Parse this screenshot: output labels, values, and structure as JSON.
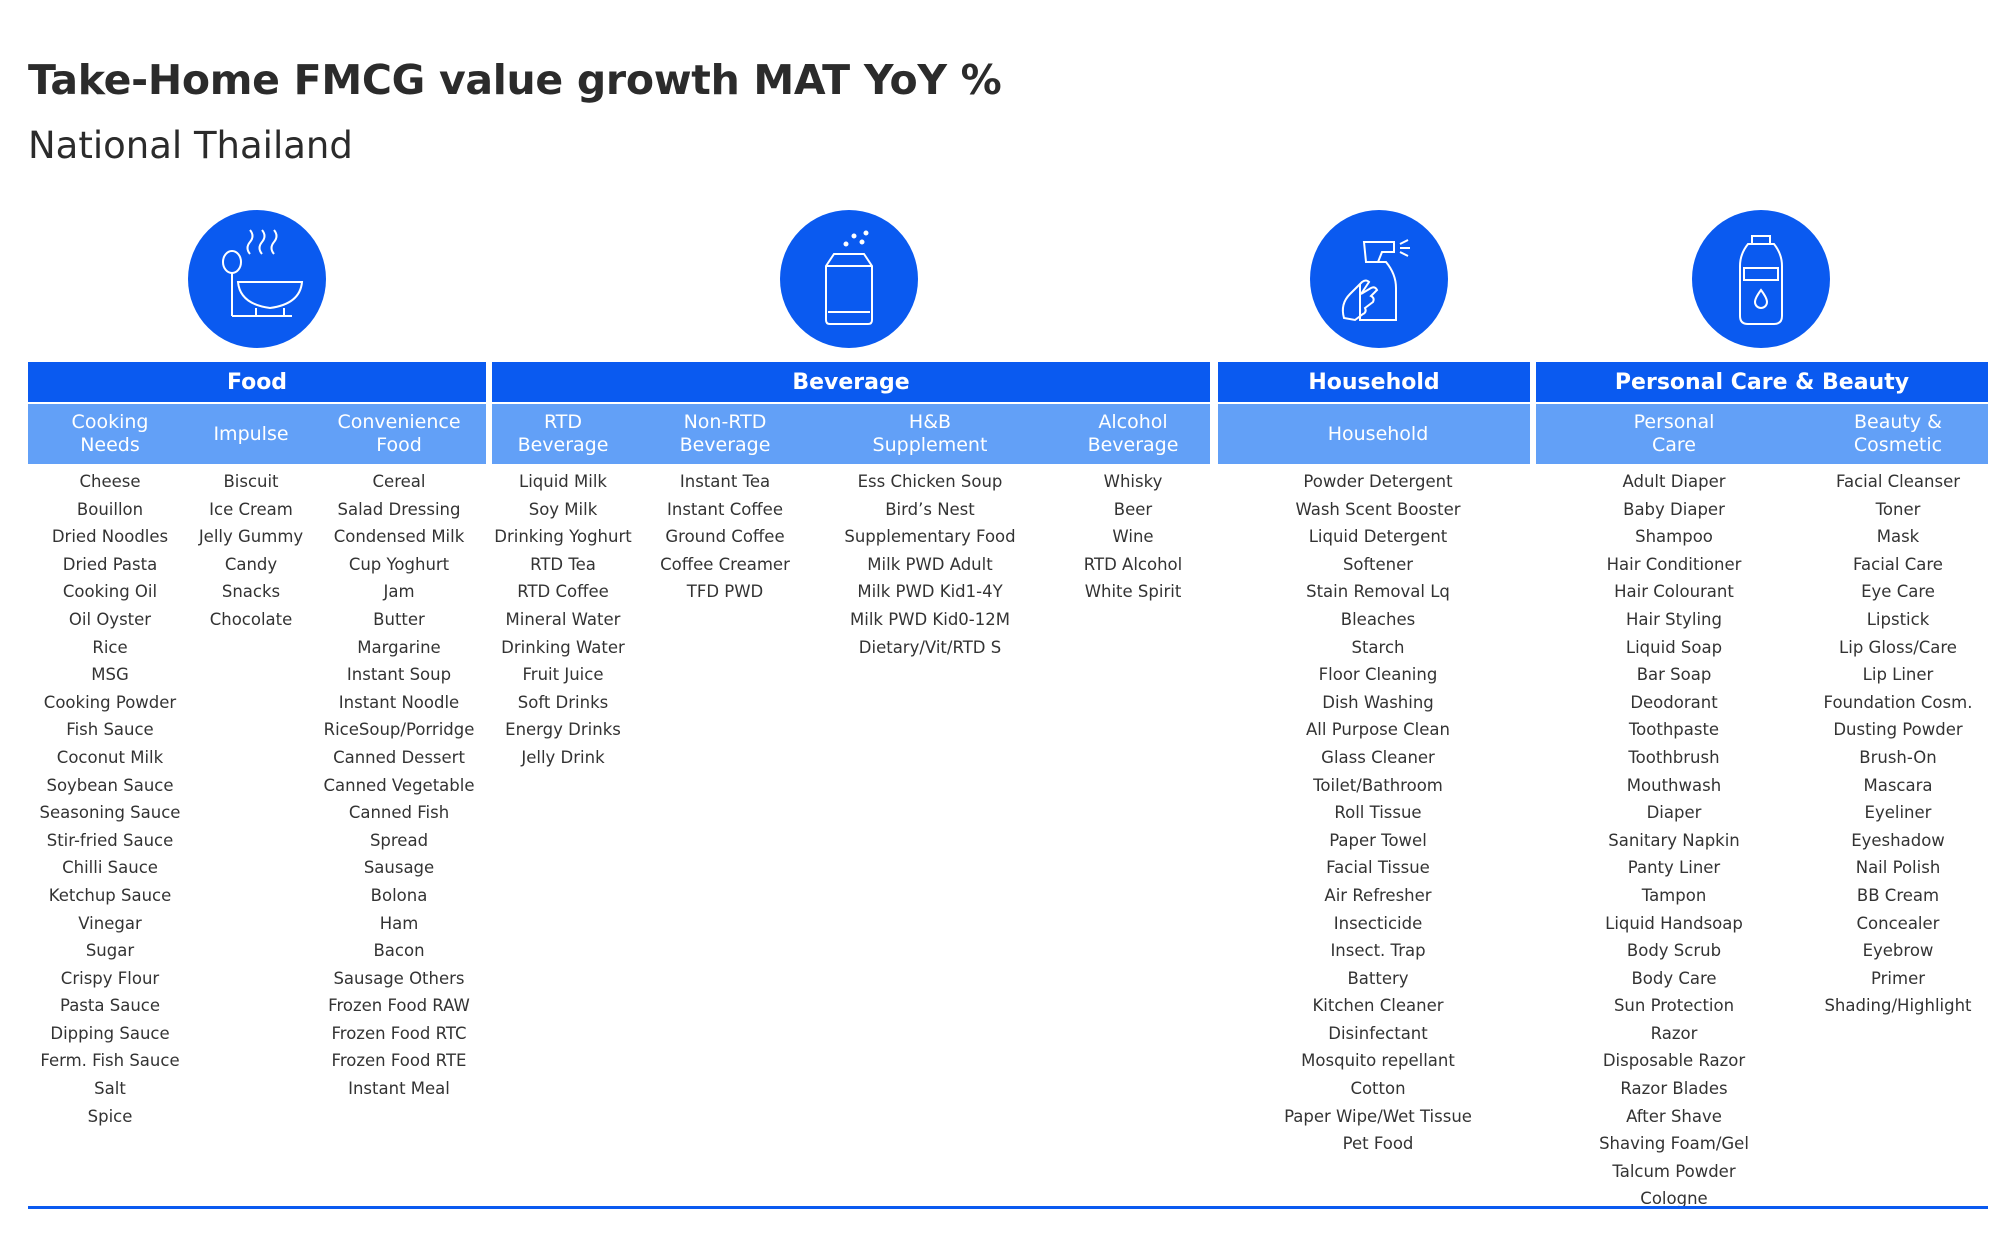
{
  "title": "Take-Home FMCG value growth MAT YoY %",
  "subtitle": "National Thailand",
  "groups": {
    "food": {
      "icon": "food-bowl-icon",
      "label": "Food",
      "subs": [
        {
          "label": "Cooking\nNeeds",
          "items": [
            "Cheese",
            "Bouillon",
            "Dried Noodles",
            "Dried Pasta",
            "Cooking Oil",
            "Oil Oyster",
            "Rice",
            "MSG",
            "Cooking Powder",
            "Fish Sauce",
            "Coconut Milk",
            "Soybean Sauce",
            "Seasoning Sauce",
            "Stir-fried Sauce",
            "Chilli Sauce",
            "Ketchup Sauce",
            "Vinegar",
            "Sugar",
            "Crispy Flour",
            "Pasta Sauce",
            "Dipping Sauce",
            "Ferm. Fish Sauce",
            "Salt",
            "Spice"
          ]
        },
        {
          "label": "Impulse",
          "items": [
            "Biscuit",
            "Ice Cream",
            "Jelly Gummy",
            "Candy",
            "Snacks",
            "Chocolate"
          ]
        },
        {
          "label": "Convenience\nFood",
          "items": [
            "Cereal",
            "Salad Dressing",
            "Condensed Milk",
            "Cup Yoghurt",
            "Jam",
            "Butter",
            "Margarine",
            "Instant Soup",
            "Instant Noodle",
            "RiceSoup/Porridge",
            "Canned Dessert",
            "Canned Vegetable",
            "Canned Fish",
            "Spread",
            "Sausage",
            "Bolona",
            "Ham",
            "Bacon",
            "Sausage Others",
            "Frozen Food RAW",
            "Frozen Food RTC",
            "Frozen Food RTE",
            "Instant Meal"
          ]
        }
      ]
    },
    "beverage": {
      "icon": "beverage-can-icon",
      "label": "Beverage",
      "subs": [
        {
          "label": "RTD\nBeverage",
          "items": [
            "Liquid Milk",
            "Soy Milk",
            "Drinking Yoghurt",
            "RTD Tea",
            "RTD Coffee",
            "Mineral Water",
            "Drinking Water",
            "Fruit Juice",
            "Soft Drinks",
            "Energy Drinks",
            "Jelly Drink"
          ]
        },
        {
          "label": "Non-RTD\nBeverage",
          "items": [
            "Instant Tea",
            "Instant Coffee",
            "Ground Coffee",
            "Coffee Creamer",
            "TFD PWD"
          ]
        },
        {
          "label": "H&B\nSupplement",
          "items": [
            "Ess Chicken Soup",
            "Bird’s Nest",
            "Supplementary Food",
            "Milk PWD Adult",
            "Milk PWD Kid1-4Y",
            "Milk PWD Kid0-12M",
            "Dietary/Vit/RTD S"
          ]
        },
        {
          "label": "Alcohol\nBeverage",
          "items": [
            "Whisky",
            "Beer",
            "Wine",
            "RTD Alcohol",
            "White Spirit"
          ]
        }
      ]
    },
    "household": {
      "icon": "spray-bottle-icon",
      "label": "Household",
      "subs": [
        {
          "label": "Household",
          "items": [
            "Powder Detergent",
            "Wash Scent Booster",
            "Liquid Detergent",
            "Softener",
            "Stain Removal Lq",
            "Bleaches",
            "Starch",
            "Floor Cleaning",
            "Dish Washing",
            "All Purpose Clean",
            "Glass Cleaner",
            "Toilet/Bathroom",
            "Roll Tissue",
            "Paper Towel",
            "Facial Tissue",
            "Air Refresher",
            "Insecticide",
            "Insect. Trap",
            "Battery",
            "Kitchen Cleaner",
            "Disinfectant",
            "Mosquito repellant",
            "Cotton",
            "Paper Wipe/Wet Tissue",
            "Pet Food"
          ]
        }
      ]
    },
    "personal": {
      "icon": "lotion-bottle-icon",
      "label": "Personal Care & Beauty",
      "subs": [
        {
          "label": "Personal\nCare",
          "items": [
            "Adult Diaper",
            "Baby Diaper",
            "Shampoo",
            "Hair Conditioner",
            "Hair Colourant",
            "Hair Styling",
            "Liquid Soap",
            "Bar Soap",
            "Deodorant",
            "Toothpaste",
            "Toothbrush",
            "Mouthwash",
            "Diaper",
            "Sanitary Napkin",
            "Panty Liner",
            "Tampon",
            "Liquid Handsoap",
            "Body Scrub",
            "Body Care",
            "Sun Protection",
            "Razor",
            "Disposable Razor",
            "Razor Blades",
            "After Shave",
            "Shaving Foam/Gel",
            "Talcum Powder",
            "Cologne"
          ]
        },
        {
          "label": "Beauty &\nCosmetic",
          "items": [
            "Facial Cleanser",
            "Toner",
            "Mask",
            "Facial Care",
            "Eye Care",
            "Lipstick",
            "Lip Gloss/Care",
            "Lip Liner",
            "Foundation Cosm.",
            "Dusting Powder",
            "Brush-On",
            "Mascara",
            "Eyeliner",
            "Eyeshadow",
            "Nail Polish",
            "BB Cream",
            "Concealer",
            "Eyebrow",
            "Primer",
            "Shading/Highlight"
          ]
        }
      ]
    }
  },
  "colors": {
    "primary": "#0a5af0",
    "secondary": "#62a0f7"
  }
}
